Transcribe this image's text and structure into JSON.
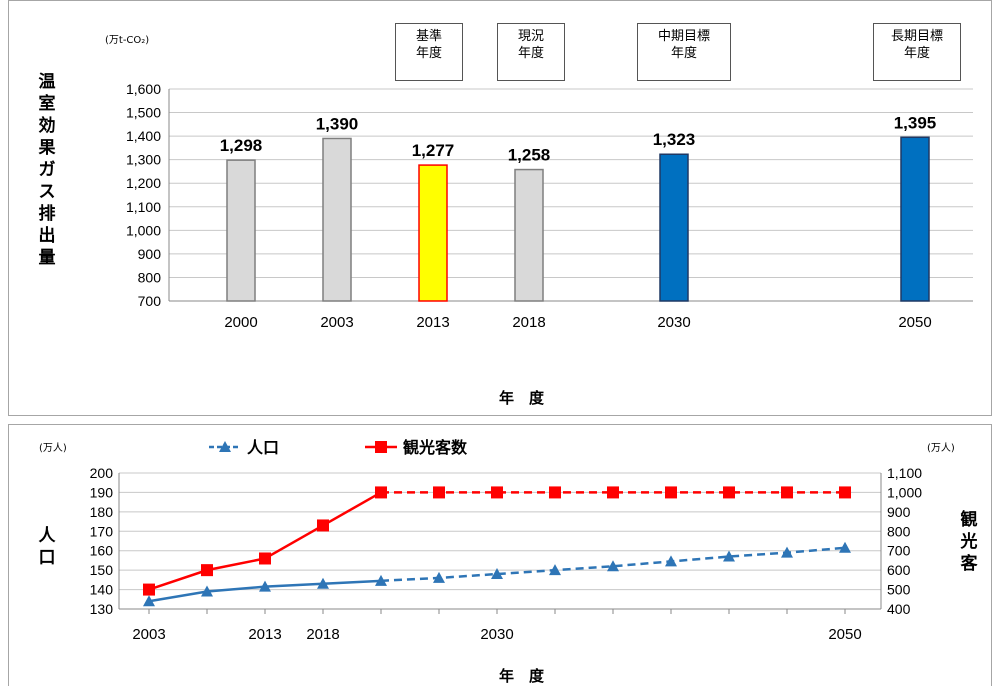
{
  "chart_data": [
    {
      "type": "bar",
      "unit": "(万t-CO₂)",
      "ylabel": "温室効果ガス排出量",
      "xlabel": "年　度",
      "categories": [
        "2000",
        "2003",
        "2013",
        "2018",
        "2030",
        "2050"
      ],
      "values": [
        1298,
        1390,
        1277,
        1258,
        1323,
        1395
      ],
      "value_labels": [
        "1,298",
        "1,390",
        "1,277",
        "1,258",
        "1,323",
        "1,395"
      ],
      "bar_colors": [
        "#d9d9d9",
        "#d9d9d9",
        "#ffff00",
        "#d9d9d9",
        "#0070c0",
        "#0070c0"
      ],
      "bar_borders": [
        "#7f7f7f",
        "#7f7f7f",
        "#ff0000",
        "#7f7f7f",
        "#1f3864",
        "#1f3864"
      ],
      "annotations": [
        "基準\n年度",
        "現況\n年度",
        "中期目標\n年度",
        "長期目標\n年度"
      ],
      "ylim": [
        700,
        1600
      ],
      "yticks": [
        "700",
        "800",
        "900",
        "1,000",
        "1,100",
        "1,200",
        "1,300",
        "1,400",
        "1,500",
        "1,600"
      ],
      "grid": true
    },
    {
      "type": "line",
      "xlabel": "年　度",
      "left_unit": "(万人)",
      "right_unit": "(万人)",
      "left_label": "人口",
      "right_label": "観光客",
      "xtick_labels": [
        "2003",
        "2013",
        "2018",
        "2030",
        "2050"
      ],
      "x": [
        2003,
        2008,
        2013,
        2018,
        2023,
        2028,
        2033,
        2038,
        2043,
        2048,
        2053,
        2058,
        2063
      ],
      "series": [
        {
          "name": "人口",
          "axis": "left",
          "color": "#2e75b6",
          "values": [
            134,
            139,
            141.5,
            143,
            144.5,
            146,
            148,
            150,
            152,
            154.5,
            157,
            159,
            161.5
          ]
        },
        {
          "name": "観光客数",
          "axis": "right",
          "color": "#ff0000",
          "values": [
            500,
            600,
            660,
            830,
            1000,
            1000,
            1000,
            1000,
            1000,
            1000,
            1000,
            1000,
            1000
          ]
        }
      ],
      "ylim_left": [
        130,
        200
      ],
      "yticks_left": [
        "130",
        "140",
        "150",
        "160",
        "170",
        "180",
        "190",
        "200"
      ],
      "ylim_right": [
        400,
        1100
      ],
      "yticks_right": [
        "400",
        "500",
        "600",
        "700",
        "800",
        "900",
        "1,000",
        "1,100"
      ],
      "legend": "top-left",
      "grid": true
    }
  ]
}
